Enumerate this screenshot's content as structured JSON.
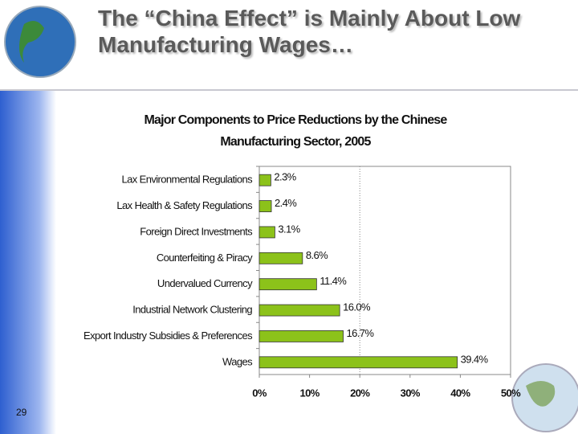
{
  "slide_title": "The “China Effect” is Mainly About Low Manufacturing Wages…",
  "page_number": "29",
  "chart_data": {
    "type": "bar",
    "orientation": "horizontal",
    "title": "Major Components to Price Reductions by the Chinese Manufacturing Sector, 2005",
    "categories": [
      "Lax Environmental Regulations",
      "Lax Health & Safety Regulations",
      "Foreign Direct Investments",
      "Counterfeiting & Piracy",
      "Undervalued Currency",
      "Industrial Network Clustering",
      "Export Industry Subsidies & Preferences",
      "Wages"
    ],
    "values": [
      2.3,
      2.4,
      3.1,
      8.6,
      11.4,
      16.0,
      16.7,
      39.4
    ],
    "value_labels": [
      "2.3%",
      "2.4%",
      "3.1%",
      "8.6%",
      "11.4%",
      "16.0%",
      "16.7%",
      "39.4%"
    ],
    "color": "#8cc21a",
    "xlim": [
      0,
      50
    ],
    "xticks": [
      {
        "value": 0,
        "label": "0%"
      },
      {
        "value": 10,
        "label": "10%"
      },
      {
        "value": 20,
        "label": "20%"
      },
      {
        "value": 30,
        "label": "30%"
      },
      {
        "value": 40,
        "label": "40%"
      },
      {
        "value": 50,
        "label": "50%"
      }
    ],
    "reference_line": 20
  }
}
